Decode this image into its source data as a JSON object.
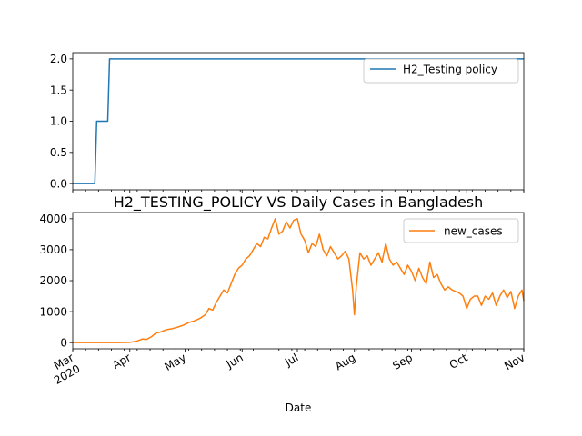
{
  "chart_data": [
    {
      "type": "line",
      "title": "",
      "xlabel": "",
      "ylabel": "",
      "x_range": [
        "2020-03-01",
        "2020-11-01"
      ],
      "ylim": [
        -0.1,
        2.1
      ],
      "yticks": [
        "0.0",
        "0.5",
        "1.0",
        "1.5",
        "2.0"
      ],
      "grid": false,
      "legend_position": "top-right",
      "series": [
        {
          "name": "H2_Testing policy",
          "color": "#1f77b4",
          "x": [
            "2020-03-01",
            "2020-03-13",
            "2020-03-14",
            "2020-03-20",
            "2020-03-21",
            "2020-11-01"
          ],
          "y": [
            0,
            0,
            1,
            1,
            2,
            2
          ]
        }
      ]
    },
    {
      "type": "line",
      "title": "H2_TESTING_POLICY VS Daily Cases in Bangladesh",
      "xlabel": "Date",
      "ylabel": "",
      "x_range": [
        "2020-03-01",
        "2020-11-01"
      ],
      "ylim": [
        -200,
        4200
      ],
      "yticks": [
        "0",
        "1000",
        "2000",
        "3000",
        "4000"
      ],
      "xtick_labels": [
        "Mar\n2020",
        "Apr",
        "May",
        "Jun",
        "Jul",
        "Aug",
        "Sep",
        "Oct",
        "Nov"
      ],
      "grid": false,
      "legend_position": "top-right",
      "series": [
        {
          "name": "new_cases",
          "color": "#ff7f0e",
          "x": [
            "2020-03-01",
            "2020-03-25",
            "2020-04-01",
            "2020-04-05",
            "2020-04-08",
            "2020-04-10",
            "2020-04-13",
            "2020-04-15",
            "2020-04-18",
            "2020-04-21",
            "2020-04-24",
            "2020-04-27",
            "2020-04-30",
            "2020-05-03",
            "2020-05-06",
            "2020-05-09",
            "2020-05-12",
            "2020-05-14",
            "2020-05-16",
            "2020-05-18",
            "2020-05-20",
            "2020-05-22",
            "2020-05-24",
            "2020-05-26",
            "2020-05-28",
            "2020-05-30",
            "2020-06-01",
            "2020-06-03",
            "2020-06-05",
            "2020-06-07",
            "2020-06-09",
            "2020-06-11",
            "2020-06-13",
            "2020-06-15",
            "2020-06-17",
            "2020-06-19",
            "2020-06-21",
            "2020-06-23",
            "2020-06-25",
            "2020-06-27",
            "2020-06-29",
            "2020-07-01",
            "2020-07-03",
            "2020-07-05",
            "2020-07-07",
            "2020-07-09",
            "2020-07-11",
            "2020-07-13",
            "2020-07-15",
            "2020-07-17",
            "2020-07-19",
            "2020-07-21",
            "2020-07-23",
            "2020-07-25",
            "2020-07-27",
            "2020-07-29",
            "2020-07-31",
            "2020-08-01",
            "2020-08-02",
            "2020-08-04",
            "2020-08-06",
            "2020-08-08",
            "2020-08-10",
            "2020-08-12",
            "2020-08-14",
            "2020-08-16",
            "2020-08-18",
            "2020-08-20",
            "2020-08-22",
            "2020-08-24",
            "2020-08-26",
            "2020-08-28",
            "2020-08-30",
            "2020-09-01",
            "2020-09-03",
            "2020-09-05",
            "2020-09-07",
            "2020-09-09",
            "2020-09-11",
            "2020-09-13",
            "2020-09-15",
            "2020-09-17",
            "2020-09-19",
            "2020-09-21",
            "2020-09-23",
            "2020-09-25",
            "2020-09-27",
            "2020-09-29",
            "2020-10-01",
            "2020-10-03",
            "2020-10-05",
            "2020-10-07",
            "2020-10-09",
            "2020-10-11",
            "2020-10-13",
            "2020-10-15",
            "2020-10-17",
            "2020-10-19",
            "2020-10-21",
            "2020-10-23",
            "2020-10-25",
            "2020-10-27",
            "2020-10-29",
            "2020-10-31",
            "2020-11-01"
          ],
          "y": [
            0,
            0,
            10,
            50,
            120,
            100,
            200,
            300,
            350,
            420,
            450,
            500,
            560,
            650,
            700,
            780,
            900,
            1100,
            1050,
            1300,
            1500,
            1700,
            1600,
            1900,
            2200,
            2400,
            2500,
            2700,
            2800,
            3000,
            3200,
            3100,
            3400,
            3350,
            3700,
            4000,
            3500,
            3600,
            3900,
            3700,
            3950,
            4000,
            3500,
            3300,
            2900,
            3200,
            3100,
            3500,
            3000,
            2800,
            3100,
            2900,
            2700,
            2800,
            2950,
            2700,
            1700,
            900,
            1800,
            2900,
            2700,
            2800,
            2500,
            2700,
            2900,
            2600,
            3200,
            2700,
            2500,
            2600,
            2400,
            2200,
            2500,
            2300,
            2000,
            2400,
            2100,
            1900,
            2600,
            2100,
            2200,
            1900,
            1700,
            1800,
            1700,
            1650,
            1600,
            1500,
            1100,
            1400,
            1500,
            1500,
            1200,
            1500,
            1400,
            1600,
            1200,
            1500,
            1700,
            1450,
            1650,
            1100,
            1500,
            1700,
            1350
          ]
        }
      ]
    }
  ]
}
